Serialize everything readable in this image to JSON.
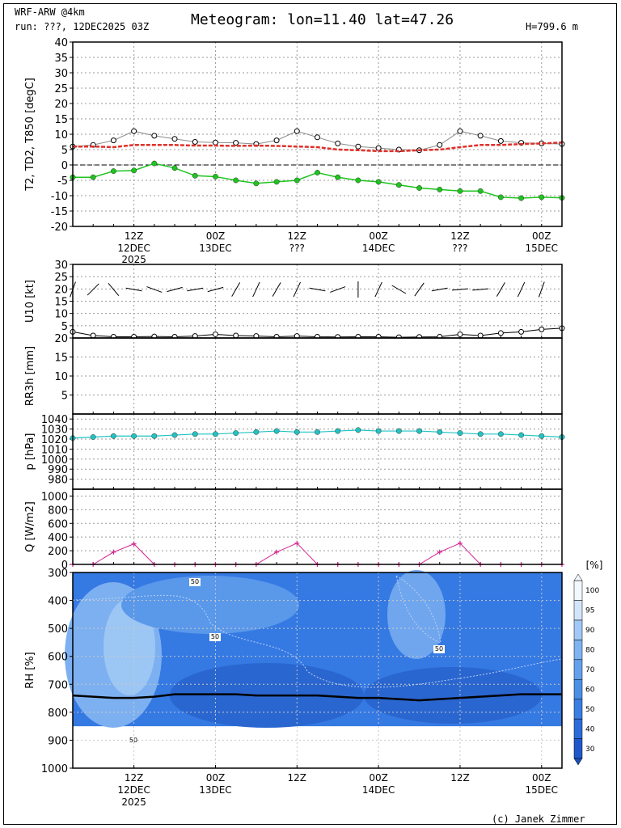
{
  "header": {
    "model": "WRF-ARW @4km",
    "run": "run: ???, 12DEC2025 03Z",
    "title": "Meteogram: lon=11.40 lat=47.26",
    "height": "H=799.6 m",
    "copyright": "(c) Janek Zimmer"
  },
  "colors": {
    "t2": "#8c8c8c",
    "td2": "#1fc41f",
    "t850": "#e0302a",
    "pressure": "#22c3c3",
    "radiation": "#d3238f",
    "rh_low": "#1f58d6",
    "rh_high": "#e9f3fd"
  },
  "chart_data": [
    {
      "type": "line",
      "ylabel": "T2, TD2, T850 [degC]",
      "ylim": [
        -20,
        40
      ],
      "yticks": [
        -20,
        -15,
        -10,
        -5,
        0,
        5,
        10,
        15,
        20,
        25,
        30,
        35,
        40
      ],
      "x_hours": [
        0,
        3,
        6,
        9,
        12,
        15,
        18,
        21,
        24,
        27,
        30,
        33,
        36,
        39,
        42,
        45,
        48,
        51,
        54,
        57,
        60,
        63,
        66,
        69,
        72
      ],
      "xlim": [
        0,
        72
      ],
      "xticks": [
        {
          "h": 9,
          "label": "12Z",
          "sub": "12DEC"
        },
        {
          "h": 21,
          "label": "00Z",
          "sub": "13DEC"
        },
        {
          "h": 33,
          "label": "12Z",
          "sub": "???"
        },
        {
          "h": 45,
          "label": "00Z",
          "sub": "14DEC"
        },
        {
          "h": 57,
          "label": "12Z",
          "sub": "???"
        },
        {
          "h": 69,
          "label": "00Z",
          "sub": "15DEC"
        }
      ],
      "year_label": "2025",
      "series": [
        {
          "values": [
            6,
            6.5,
            8,
            11,
            9.5,
            8.5,
            7.5,
            7.3,
            7.2,
            6.8,
            8,
            11,
            9,
            7,
            6,
            5.5,
            5,
            4.8,
            6.5,
            11,
            9.5,
            7.8,
            7.2,
            7,
            6.8
          ]
        },
        {
          "values": [
            -4,
            -4,
            -2,
            -1.8,
            0.5,
            -1,
            -3.5,
            -3.8,
            -5,
            -6,
            -5.5,
            -5,
            -2.5,
            -4,
            -5,
            -5.5,
            -6.5,
            -7.5,
            -8,
            -8.5,
            -8.5,
            -10.5,
            -10.8,
            -10.5,
            -10.7
          ]
        },
        {
          "values": [
            6,
            6,
            5.8,
            6.5,
            6.5,
            6.5,
            6.3,
            6.3,
            6.2,
            6.3,
            6.2,
            6,
            5.8,
            5,
            4.8,
            4.5,
            4.5,
            4.8,
            5,
            5.8,
            6.5,
            6.5,
            6.8,
            7,
            7.3
          ]
        }
      ]
    },
    {
      "type": "line",
      "ylabel": "U10 [kt]",
      "ylim": [
        0,
        30
      ],
      "yticks": [
        5,
        10,
        15,
        20,
        25,
        30
      ],
      "series": [
        {
          "values": [
            2.5,
            1,
            0.5,
            0.5,
            0.6,
            0.5,
            0.8,
            1.5,
            1,
            0.8,
            0.5,
            0.8,
            0.5,
            0.4,
            0.5,
            0.5,
            0.3,
            0.4,
            0.5,
            1.5,
            1,
            2,
            2.5,
            3.5,
            4
          ]
        }
      ],
      "barb_directions_deg": [
        200,
        225,
        140,
        100,
        290,
        255,
        260,
        255,
        210,
        205,
        210,
        205,
        100,
        70,
        180,
        205,
        300,
        215,
        260,
        265,
        265,
        210,
        205,
        200,
        180
      ]
    },
    {
      "type": "bar",
      "ylabel": "RR3h [mm]",
      "ylim": [
        0,
        20
      ],
      "yticks": [
        5,
        10,
        15,
        20
      ],
      "values": [
        0,
        0,
        0,
        0,
        0,
        0,
        0,
        0,
        0,
        0,
        0,
        0,
        0,
        0,
        0,
        0,
        0,
        0,
        0,
        0,
        0,
        0,
        0,
        0,
        0
      ]
    },
    {
      "type": "line",
      "ylabel": "p [hPa]",
      "ylim": [
        970,
        1045
      ],
      "yticks": [
        980,
        990,
        1000,
        1010,
        1020,
        1030,
        1040
      ],
      "series": [
        {
          "values": [
            1021,
            1022,
            1023,
            1023,
            1023,
            1024,
            1025,
            1025,
            1026,
            1027,
            1028,
            1027,
            1027,
            1028,
            1029,
            1028,
            1028,
            1028,
            1027,
            1026,
            1025,
            1025,
            1024,
            1023,
            1022
          ]
        }
      ]
    },
    {
      "type": "line",
      "ylabel": "Q [W/m2]",
      "ylim": [
        0,
        1100
      ],
      "yticks": [
        0,
        200,
        400,
        600,
        800,
        1000
      ],
      "series": [
        {
          "values": [
            0,
            0,
            180,
            300,
            0,
            0,
            0,
            0,
            0,
            0,
            180,
            310,
            0,
            0,
            0,
            0,
            0,
            0,
            180,
            310,
            0,
            0,
            0,
            0,
            0
          ]
        }
      ]
    },
    {
      "type": "heatmap",
      "ylabel": "RH [%]",
      "y_levels": [
        300,
        400,
        500,
        600,
        700,
        800,
        900,
        1000
      ],
      "colorbar_unit": "[%]",
      "colorbar_levels": [
        30,
        40,
        50,
        60,
        70,
        80,
        90,
        95,
        100
      ],
      "contour_label": "50",
      "surface_pressure_line_hpa": 740
    }
  ]
}
